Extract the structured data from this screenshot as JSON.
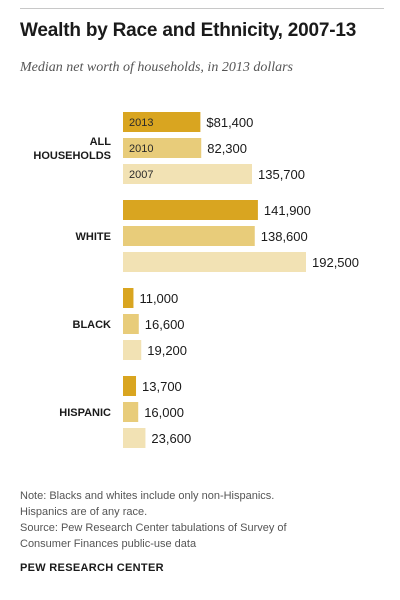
{
  "title": "Wealth by Race and Ethnicity, 2007-13",
  "subtitle": "Median net worth of households, in 2013 dollars",
  "chart_data": {
    "type": "bar",
    "orientation": "horizontal",
    "categories": [
      [
        "ALL",
        "HOUSEHOLDS"
      ],
      [
        "WHITE"
      ],
      [
        "BLACK"
      ],
      [
        "HISPANIC"
      ]
    ],
    "series": [
      {
        "name": "2013",
        "color": "#d9a520",
        "values": [
          81400,
          141900,
          11000,
          13700
        ],
        "labels": [
          "$81,400",
          "141,900",
          "11,000",
          "13,700"
        ]
      },
      {
        "name": "2010",
        "color": "#e8cc7a",
        "values": [
          82300,
          138600,
          16600,
          16000
        ],
        "labels": [
          "82,300",
          "138,600",
          "16,600",
          "16,000"
        ]
      },
      {
        "name": "2007",
        "color": "#f2e2b4",
        "values": [
          135700,
          192500,
          19200,
          23600
        ],
        "labels": [
          "135,700",
          "192,500",
          "19,200",
          "23,600"
        ]
      }
    ],
    "legend": "in-bar labels on first group",
    "grid": false
  },
  "note_lines": [
    "Note: Blacks and whites include only non-Hispanics.",
    "Hispanics are of any race.",
    "Source: Pew Research Center tabulations of Survey of",
    "Consumer Finances public-use data"
  ],
  "brand": "PEW RESEARCH CENTER"
}
